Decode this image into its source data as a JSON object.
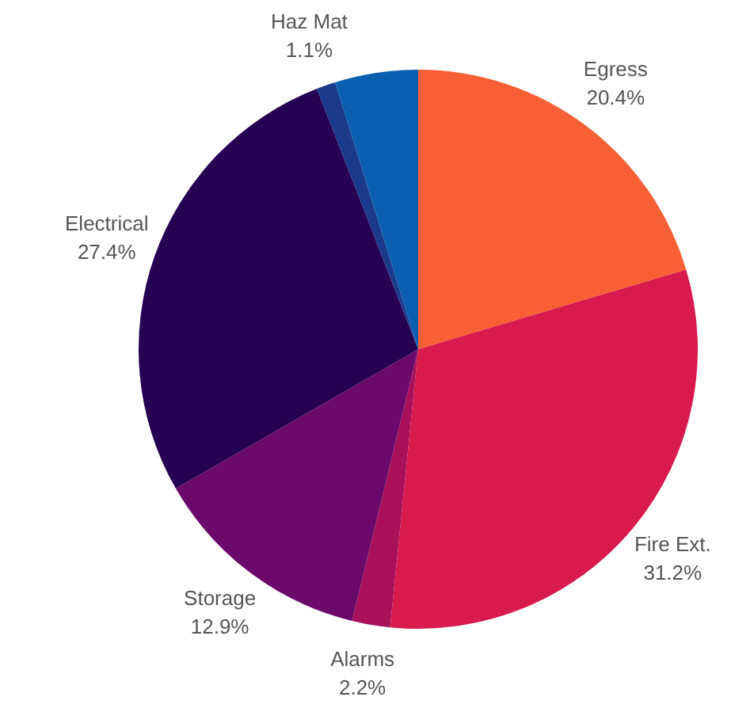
{
  "chart_data": {
    "type": "pie",
    "categories": [
      "Egress",
      "Fire Ext.",
      "Alarms",
      "Storage",
      "Electrical",
      "Haz Mat",
      null
    ],
    "values": [
      20.4,
      31.2,
      2.2,
      12.9,
      27.4,
      1.1,
      4.8
    ],
    "colors": [
      "#f76034",
      "#d91a4d",
      "#a8105a",
      "#6b0a6a",
      "#260052",
      "#1b3a8c",
      "#0a5fb0"
    ],
    "value_labels": [
      "20.4%",
      "31.2%",
      "2.2%",
      "12.9%",
      "27.4%",
      "1.1%",
      null
    ],
    "legend": false
  }
}
